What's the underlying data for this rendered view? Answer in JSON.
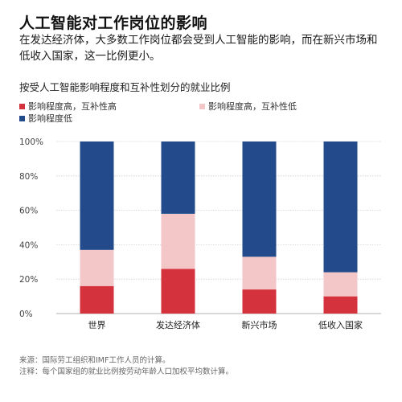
{
  "title": "人工智能对工作岗位的影响",
  "subtitle": "在发达经济体，大多数工作岗位都会受到人工智能的影响，而在新兴市场和低收入国家，这一比例更小。",
  "chart_heading": "按受人工智能影响程度和互补性划分的就业比例",
  "colors": {
    "high_high": "#d4323c",
    "high_low": "#f3c6c8",
    "low": "#234a8a"
  },
  "footer": {
    "source": "来源：国际劳工组织和IMF工作人员的计算。",
    "note": "注释：每个国家组的就业比例按劳动年龄人口加权平均数计算。"
  },
  "chart_data": {
    "type": "bar",
    "stacked": true,
    "categories": [
      "世界",
      "发达经济体",
      "新兴市场",
      "低收入国家"
    ],
    "series": [
      {
        "name": "影响程度高，互补性高",
        "color": "#d4323c",
        "values": [
          16,
          26,
          14,
          10
        ]
      },
      {
        "name": "影响程度高，互补性低",
        "color": "#f3c6c8",
        "values": [
          21,
          32,
          19,
          14
        ]
      },
      {
        "name": "影响程度低",
        "color": "#234a8a",
        "values": [
          63,
          42,
          67,
          76
        ]
      }
    ],
    "ylim": [
      0,
      100
    ],
    "yticks": [
      "0%",
      "20%",
      "40%",
      "60%",
      "80%",
      "100%"
    ],
    "grid": true,
    "legend_position": "top-left"
  }
}
